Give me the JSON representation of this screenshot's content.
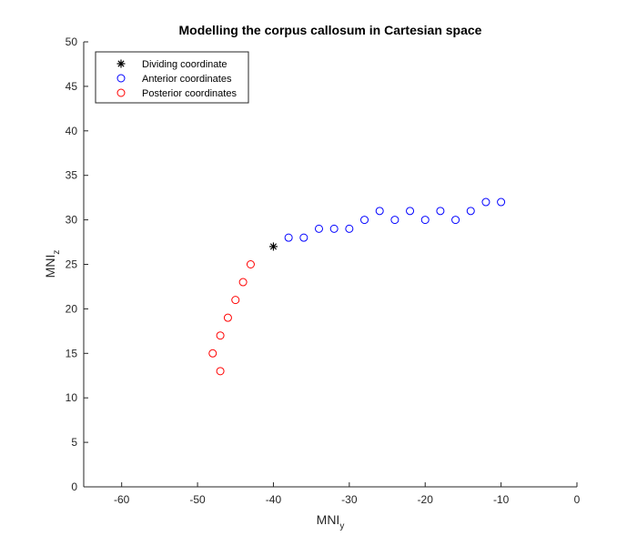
{
  "chart_data": {
    "type": "scatter",
    "title": "Modelling the corpus callosum in Cartesian space",
    "xlabel": {
      "main": "MNI",
      "sub": "y"
    },
    "ylabel": {
      "main": "MNI",
      "sub": "z"
    },
    "xlim": [
      -65,
      0
    ],
    "ylim": [
      0,
      50
    ],
    "xticks": [
      -60,
      -50,
      -40,
      -30,
      -20,
      -10,
      0
    ],
    "yticks": [
      0,
      5,
      10,
      15,
      20,
      25,
      30,
      35,
      40,
      45,
      50
    ],
    "grid": false,
    "legend_position": "top-left",
    "series": [
      {
        "name": "Dividing coordinate",
        "marker": "asterisk",
        "color": "#000000",
        "points": [
          [
            -40,
            27
          ]
        ]
      },
      {
        "name": "Anterior coordinates",
        "marker": "circle",
        "color": "#0000ff",
        "points": [
          [
            -38,
            28
          ],
          [
            -36,
            28
          ],
          [
            -34,
            29
          ],
          [
            -32,
            29
          ],
          [
            -30,
            29
          ],
          [
            -28,
            30
          ],
          [
            -26,
            31
          ],
          [
            -24,
            30
          ],
          [
            -22,
            31
          ],
          [
            -20,
            30
          ],
          [
            -18,
            31
          ],
          [
            -16,
            30
          ],
          [
            -14,
            31
          ],
          [
            -12,
            32
          ],
          [
            -10,
            32
          ]
        ]
      },
      {
        "name": "Posterior coordinates",
        "marker": "circle",
        "color": "#ff0000",
        "points": [
          [
            -43,
            25
          ],
          [
            -44,
            23
          ],
          [
            -45,
            21
          ],
          [
            -46,
            19
          ],
          [
            -47,
            17
          ],
          [
            -48,
            15
          ],
          [
            -47,
            13
          ]
        ]
      }
    ]
  }
}
